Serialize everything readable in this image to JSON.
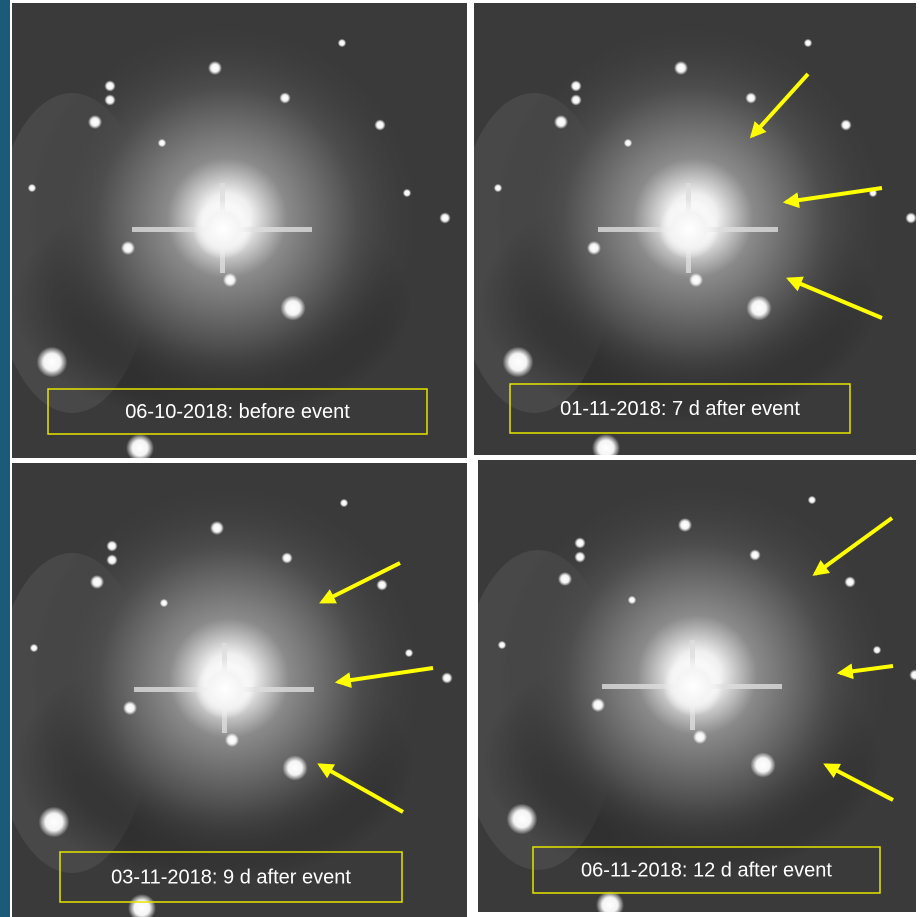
{
  "panels": [
    {
      "label": "06-10-2018: before event"
    },
    {
      "label": "01-11-2018: 7 d after event"
    },
    {
      "label": "03-11-2018: 9 d after event"
    },
    {
      "label": "06-11-2018: 12 d after event"
    }
  ]
}
